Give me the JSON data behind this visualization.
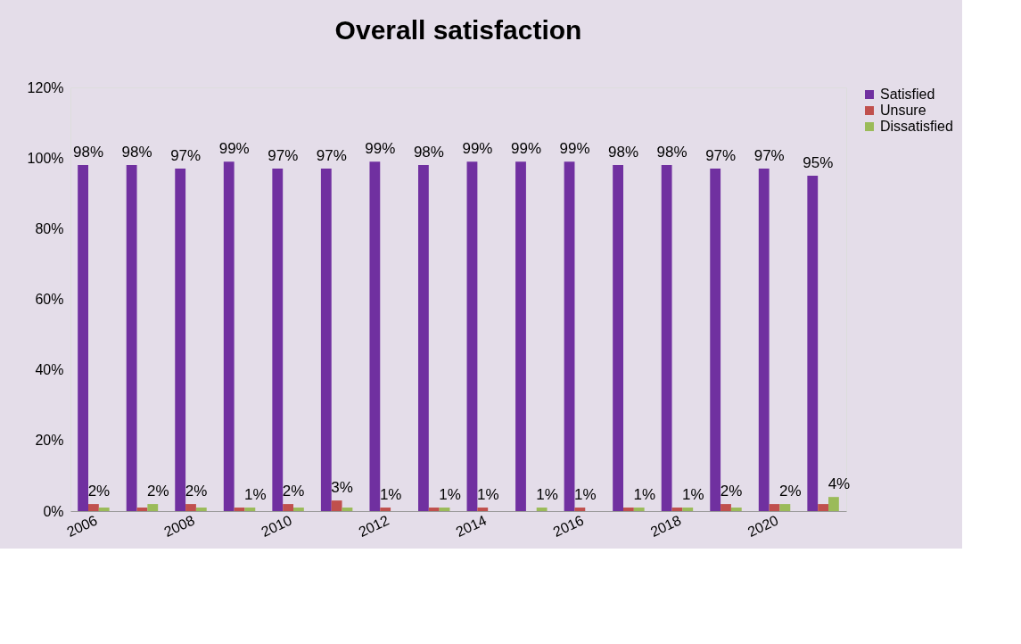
{
  "chart_data": {
    "type": "bar",
    "title": "Overall satisfaction",
    "categories": [
      "2006",
      null,
      "2008",
      null,
      "2010",
      null,
      "2012",
      null,
      "2014",
      null,
      "2016",
      null,
      "2018",
      null,
      "2020",
      null
    ],
    "series": [
      {
        "name": "Satisfied",
        "color": "#7030a0",
        "values": [
          98,
          98,
          97,
          99,
          97,
          97,
          99,
          98,
          99,
          99,
          99,
          98,
          98,
          97,
          97,
          95
        ],
        "value_labels": [
          "98%",
          "98%",
          "97%",
          "99%",
          "97%",
          "97%",
          "99%",
          "98%",
          "99%",
          "99%",
          "99%",
          "98%",
          "98%",
          "97%",
          "97%",
          "95%"
        ]
      },
      {
        "name": "Unsure",
        "color": "#c0504d",
        "values": [
          2,
          1,
          2,
          1,
          2,
          3,
          1,
          1,
          1,
          0,
          1,
          1,
          1,
          2,
          2,
          2
        ],
        "value_labels": [
          "2%",
          null,
          "2%",
          null,
          "2%",
          "3%",
          "1%",
          null,
          "1%",
          null,
          "1%",
          null,
          null,
          "2%",
          null,
          null
        ]
      },
      {
        "name": "Dissatisfied",
        "color": "#9bbb59",
        "values": [
          1,
          2,
          1,
          1,
          1,
          1,
          0,
          1,
          0,
          1,
          0,
          1,
          1,
          1,
          2,
          4
        ],
        "value_labels": [
          null,
          "2%",
          null,
          "1%",
          null,
          null,
          null,
          "1%",
          null,
          "1%",
          null,
          "1%",
          "1%",
          null,
          "2%",
          "4%"
        ]
      }
    ],
    "ylim": [
      0,
      120
    ],
    "yticks": [
      {
        "value": 0,
        "label": "0%"
      },
      {
        "value": 20,
        "label": "20%"
      },
      {
        "value": 40,
        "label": "40%"
      },
      {
        "value": 60,
        "label": "60%"
      },
      {
        "value": 80,
        "label": "80%"
      },
      {
        "value": 100,
        "label": "100%"
      },
      {
        "value": 120,
        "label": "120%"
      }
    ],
    "grid": false,
    "legend": "right"
  }
}
